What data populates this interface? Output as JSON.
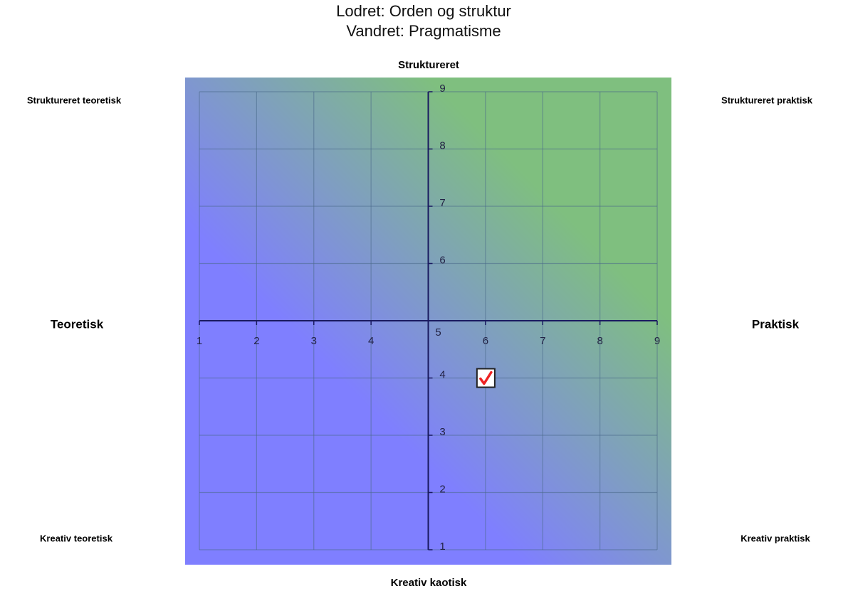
{
  "chart_data": {
    "type": "scatter",
    "title": [
      "Lodret: Orden og struktur",
      "Vandret: Pragmatisme"
    ],
    "top_label": "Struktureret",
    "bottom_label": "Kreativ kaotisk",
    "left_label": "Teoretisk",
    "right_label": "Praktisk",
    "corner_labels": [
      "Struktureret teoretisk",
      "Struktureret praktisk",
      "Kreativ teoretisk",
      "Kreativ praktisk"
    ],
    "x": [
      6
    ],
    "values": [
      4
    ],
    "xlim": [
      1,
      9
    ],
    "ylim": [
      1,
      9
    ],
    "xticks": [
      1,
      2,
      3,
      4,
      5,
      6,
      7,
      8,
      9
    ],
    "yticks": [
      1,
      2,
      3,
      4,
      5,
      6,
      7,
      8,
      9
    ],
    "origin": [
      5,
      5
    ],
    "grid": true,
    "colors": {
      "low": "#7f7fff",
      "high": "#7fbf7f"
    }
  }
}
